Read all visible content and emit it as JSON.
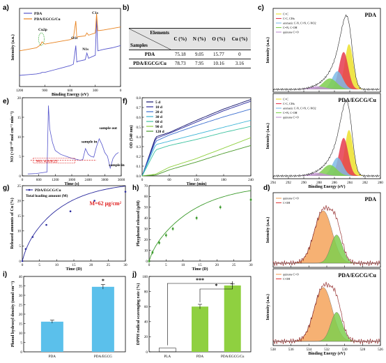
{
  "panel_labels": [
    "a)",
    "b)",
    "c)",
    "d)",
    "e)",
    "f)",
    "g)",
    "h)",
    "i)",
    "j)"
  ],
  "colors": {
    "blue": "#5555cc",
    "orange": "#e8821e",
    "green": "#2aa22a",
    "red": "#e02020",
    "cyan": "#5bc0eb",
    "lime": "#8fd040",
    "fill_orange": "#f4a35a",
    "fill_green": "#7fcf4f",
    "fill_yellow": "#ece02a",
    "fill_red": "#e53b4f",
    "fill_blue": "#7fbbe6"
  },
  "chart_data": [
    {
      "id": "a",
      "type": "line",
      "xlabel": "Binding Energy (eV)",
      "ylabel": "Intensity (a.u.)",
      "xlim": [
        1200,
        0
      ],
      "xticks": [
        "1200",
        "900",
        "600",
        "300",
        "0"
      ],
      "series": [
        {
          "name": "PDA",
          "color": "#5555cc",
          "x": [
            1200,
            1100,
            1000,
            950,
            933,
            900,
            800,
            700,
            600,
            560,
            531,
            520,
            500,
            420,
            400,
            380,
            300,
            285,
            270,
            200,
            100,
            0
          ],
          "y": [
            0.15,
            0.16,
            0.17,
            0.18,
            0.19,
            0.19,
            0.22,
            0.25,
            0.28,
            0.3,
            0.55,
            0.33,
            0.34,
            0.36,
            0.45,
            0.38,
            0.42,
            0.92,
            0.48,
            0.5,
            0.52,
            0.55
          ]
        },
        {
          "name": "PDA/EGCG/Cu",
          "color": "#e8821e",
          "x": [
            1200,
            1100,
            1000,
            950,
            933,
            900,
            800,
            700,
            600,
            560,
            531,
            520,
            500,
            420,
            400,
            380,
            300,
            285,
            270,
            200,
            100,
            0
          ],
          "y": [
            0.48,
            0.5,
            0.52,
            0.56,
            0.6,
            0.57,
            0.59,
            0.61,
            0.63,
            0.65,
            0.88,
            0.66,
            0.67,
            0.68,
            0.72,
            0.69,
            0.72,
            0.98,
            0.75,
            0.76,
            0.78,
            0.8
          ]
        }
      ],
      "annotations": [
        "Cu2p",
        "O1s",
        "N1s",
        "C1s"
      ]
    },
    {
      "id": "c",
      "type": "area",
      "xlabel": "Binding Energy (eV)",
      "ylabel": "Intensity (a.u.)",
      "xlim": [
        294,
        280
      ],
      "xticks": [
        "294",
        "292",
        "290",
        "288",
        "286",
        "284",
        "282",
        "280"
      ],
      "subplots": [
        {
          "title": "PDA"
        },
        {
          "title": "PDA/EGCG/Cu"
        }
      ],
      "legend": [
        "C=C",
        "C-C, CHx",
        "aromatic C-N, C=N, C-NO2",
        "C=N, C-OH",
        "quinone C=O"
      ]
    },
    {
      "id": "d",
      "type": "area",
      "xlabel": "Binding Energy (eV)",
      "ylabel": "Intensity (a.u.)",
      "xlim": [
        538,
        526
      ],
      "xticks": [
        "538",
        "536",
        "534",
        "532",
        "530",
        "528",
        "526"
      ],
      "subplots": [
        {
          "title": "PDA"
        },
        {
          "title": "PDA/EGCG/Cu"
        }
      ],
      "legend": [
        "quinone C=O",
        "C-OH"
      ]
    },
    {
      "id": "e",
      "type": "line",
      "xlabel": "Time (s)",
      "ylabel": "NO (×10⁻¹⁰ mol cm⁻² min⁻¹)",
      "xlim": [
        0,
        3600
      ],
      "ylim": [
        0,
        20
      ],
      "xticks": [
        "0",
        "600",
        "1200",
        "1800",
        "2400",
        "3000",
        "3600"
      ],
      "yticks": [
        "0",
        "5",
        "10",
        "15",
        "20"
      ],
      "series": [
        {
          "name": "NO",
          "color": "#5555cc",
          "x": [
            200,
            500,
            700,
            900,
            950,
            1000,
            1100,
            1200,
            1400,
            1600,
            1800,
            2000,
            2100,
            2200,
            2300,
            2400,
            2500,
            2600,
            2700,
            2800,
            2900,
            3000,
            3100,
            3200,
            3300,
            3400,
            3500
          ],
          "y": [
            0.5,
            0.6,
            0.8,
            1.0,
            18.0,
            12.0,
            8.5,
            6.5,
            5.5,
            5.0,
            4.5,
            4.2,
            4.0,
            4.2,
            7.0,
            5.5,
            5.0,
            4.8,
            7.5,
            9.5,
            8.0,
            6.0,
            5.0,
            2.0,
            4.5,
            5.5,
            6.0
          ]
        }
      ],
      "annotations": [
        "sample in",
        "sample out",
        "sample in"
      ],
      "ref_label": "NO: 4.0±0.25"
    },
    {
      "id": "f",
      "type": "line",
      "xlabel": "Time (min)",
      "ylabel": "OD (540 nm)",
      "xlim": [
        0,
        240
      ],
      "ylim": [
        0,
        0.9
      ],
      "xticks": [
        "0",
        "60",
        "120",
        "180",
        "240"
      ],
      "yticks": [
        "0.0",
        "0.1",
        "0.2",
        "0.3",
        "0.4",
        "0.5",
        "0.6",
        "0.7",
        "0.8"
      ],
      "series": [
        {
          "name": "5 d",
          "color": "#14146e",
          "x": [
            0,
            30,
            60,
            120,
            180,
            240
          ],
          "y": [
            0,
            0.45,
            0.5,
            0.64,
            0.77,
            0.88
          ]
        },
        {
          "name": "10 d",
          "color": "#2b2b9e",
          "x": [
            0,
            30,
            60,
            120,
            180,
            240
          ],
          "y": [
            0,
            0.43,
            0.49,
            0.62,
            0.75,
            0.86
          ]
        },
        {
          "name": "20 d",
          "color": "#3c6fd0",
          "x": [
            0,
            30,
            60,
            120,
            180,
            240
          ],
          "y": [
            0,
            0.4,
            0.47,
            0.58,
            0.68,
            0.77
          ]
        },
        {
          "name": "30 d",
          "color": "#3bb5d6",
          "x": [
            0,
            30,
            60,
            120,
            180,
            240
          ],
          "y": [
            0,
            0.36,
            0.4,
            0.48,
            0.56,
            0.64
          ]
        },
        {
          "name": "60 d",
          "color": "#3ec2a0",
          "x": [
            0,
            30,
            60,
            120,
            180,
            240
          ],
          "y": [
            0,
            0.3,
            0.35,
            0.42,
            0.5,
            0.57
          ]
        },
        {
          "name": "90 d",
          "color": "#8fd040",
          "x": [
            0,
            30,
            60,
            120,
            180,
            240
          ],
          "y": [
            0,
            0.02,
            0.1,
            0.2,
            0.32,
            0.44
          ]
        },
        {
          "name": "120 d",
          "color": "#4a9a2a",
          "x": [
            0,
            30,
            60,
            120,
            180,
            240
          ],
          "y": [
            0,
            0.01,
            0.07,
            0.16,
            0.26,
            0.35
          ]
        }
      ]
    },
    {
      "id": "g",
      "type": "line",
      "title": "Total loading amount (M)",
      "xlabel": "Time (D)",
      "ylabel": "Released amounts of Cu (%)",
      "xlim": [
        0,
        30
      ],
      "ylim": [
        0,
        25
      ],
      "xticks": [
        "0",
        "5",
        "10",
        "15",
        "20",
        "25",
        "30"
      ],
      "yticks": [
        "0",
        "5",
        "10",
        "15",
        "20",
        "25"
      ],
      "series": [
        {
          "name": "PDA/EGCG/Cu",
          "color": "#2b2b9e",
          "x": [
            0,
            1,
            3,
            7,
            14,
            21,
            30
          ],
          "y": [
            0,
            4,
            8,
            12,
            16.5,
            20,
            23
          ]
        }
      ],
      "annotation": "M=62 μg/cm²"
    },
    {
      "id": "h",
      "type": "line",
      "xlabel": "Time (D)",
      "ylabel": "Ployphenol released (μM)",
      "xlim": [
        0,
        30
      ],
      "ylim": [
        0,
        70
      ],
      "xticks": [
        "0",
        "5",
        "10",
        "15",
        "20",
        "25",
        "30"
      ],
      "yticks": [
        "0",
        "10",
        "20",
        "30",
        "40",
        "50",
        "60",
        "70"
      ],
      "series": [
        {
          "name": "Ployphenol",
          "color": "#3a9a2a",
          "x": [
            0,
            1,
            3,
            5,
            7,
            14,
            21,
            30
          ],
          "y": [
            0,
            8,
            17,
            24,
            30,
            40,
            50,
            57
          ]
        }
      ]
    },
    {
      "id": "i",
      "type": "bar",
      "ylabel": "Phenol hydroxyl density (nmol cm⁻²)",
      "categories": [
        "PDA",
        "PDA/EGCG"
      ],
      "values": [
        16,
        34.5
      ],
      "errors": [
        0.8,
        1.2
      ],
      "ylim": [
        0,
        40
      ],
      "yticks": [
        "0",
        "5",
        "10",
        "15",
        "20",
        "25",
        "30",
        "35",
        "40"
      ],
      "significance": [
        "*"
      ]
    },
    {
      "id": "j",
      "type": "bar",
      "ylabel": "DPPH radical scavenging rate (%)",
      "categories": [
        "PLA",
        "PDA",
        "PDA/EGCG/Cu"
      ],
      "values": [
        5,
        60,
        88
      ],
      "errors": [
        0,
        3,
        2
      ],
      "ylim": [
        0,
        100
      ],
      "yticks": [
        "0",
        "20",
        "40",
        "60",
        "80",
        "100"
      ],
      "significance": [
        "***",
        "*"
      ]
    }
  ],
  "table_b": {
    "header_top": "Elements",
    "header_side": "Samples",
    "columns": [
      "C (%)",
      "N (%)",
      "O (%)",
      "Cu (%)"
    ],
    "rows": [
      {
        "sample": "PDA",
        "values": [
          "75.18",
          "9.05",
          "15.77",
          "0"
        ]
      },
      {
        "sample": "PDA/EGCG/Cu",
        "values": [
          "78.73",
          "7.95",
          "10.16",
          "3.16"
        ]
      }
    ]
  }
}
